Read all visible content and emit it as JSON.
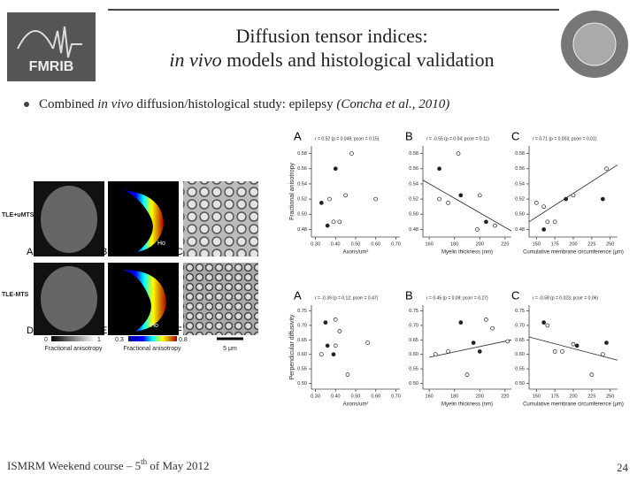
{
  "header": {
    "logo_text": "FMRIB",
    "title_line1": "Diffusion tensor indices:",
    "title_line2_italic": "in vivo",
    "title_line2_rest": " models and histological validation"
  },
  "bullet": {
    "text1": "Combined ",
    "text_italic": "in vivo",
    "text2": " diffusion/histological study: epilepsy ",
    "citation": "(Concha et al., 2010)"
  },
  "figure": {
    "row_labels": [
      "TLE+uMTS",
      "TLE-MTS"
    ],
    "panel_letters": [
      "A",
      "B",
      "C",
      "D",
      "E",
      "F"
    ],
    "image_labels": [
      "Ho",
      "Ho"
    ],
    "colorbar1": {
      "min": "0",
      "max": "1",
      "label": "Fractional anisotropy"
    },
    "colorbar2": {
      "min": "0.3",
      "max": "0.8",
      "label": "Fractional anisotropy"
    },
    "scale_label": "5 μm"
  },
  "plots": [
    {
      "ylabel": "Fractional anisotropy",
      "ylim": [
        0.47,
        0.59
      ],
      "yticks": [
        0.48,
        {
          "value": 0.5,
          "label": "0.50"
        },
        0.52,
        0.54,
        0.56,
        0.58
      ],
      "panels": [
        {
          "letter": "A",
          "stats": "r = 0.52 (p = 0.049; pcorr = 0.15)",
          "xlabel": "Axons/um²",
          "xlim": [
            0.28,
            0.72
          ],
          "xticks": [
            {
              "value": 0.3,
              "label": "0.30"
            },
            {
              "value": 0.4,
              "label": "0.40"
            },
            {
              "value": 0.5,
              "label": "0.50"
            },
            {
              "value": 0.6,
              "label": "0.60"
            },
            {
              "value": 0.7,
              "label": "0.70"
            }
          ],
          "points": [
            [
              0.4,
              0.56
            ],
            [
              0.48,
              0.58
            ],
            [
              0.37,
              0.52
            ],
            [
              0.33,
              0.515
            ],
            [
              0.45,
              0.525
            ],
            [
              0.39,
              0.49
            ],
            [
              0.36,
              0.485
            ],
            [
              0.42,
              0.49
            ],
            [
              0.6,
              0.52
            ]
          ]
        },
        {
          "letter": "B",
          "stats": "r = -0.55 (p = 0.04; pcorr = 0.11)",
          "xlabel": "Myelin thickness (nm)",
          "xlim": [
            155,
            225
          ],
          "xticks": [
            160,
            180,
            200,
            220
          ],
          "points": [
            [
              168,
              0.56
            ],
            [
              183,
              0.58
            ],
            [
              168,
              0.52
            ],
            [
              185,
              0.525
            ],
            [
              175,
              0.515
            ],
            [
              200,
              0.525
            ],
            [
              205,
              0.49
            ],
            [
              212,
              0.485
            ],
            [
              198,
              0.48
            ]
          ],
          "fit": {
            "x": [
              155,
              225
            ],
            "y": [
              0.545,
              0.478
            ]
          }
        },
        {
          "letter": "C",
          "stats": "r = 0.71 (p = 0.003; pcorr = 0.01)",
          "xlabel": "Cumulative membrane circumference (μm)",
          "xlim": [
            140,
            260
          ],
          "xticks": [
            150,
            175,
            200,
            225,
            250
          ],
          "points": [
            [
              160,
              0.48
            ],
            [
              165,
              0.49
            ],
            [
              175,
              0.49
            ],
            [
              190,
              0.52
            ],
            [
              200,
              0.525
            ],
            [
              245,
              0.56
            ],
            [
              240,
              0.52
            ],
            [
              150,
              0.515
            ],
            [
              160,
              0.51
            ]
          ],
          "fit": {
            "x": [
              140,
              260
            ],
            "y": [
              0.49,
              0.565
            ]
          }
        }
      ]
    },
    {
      "ylabel": "Perpendicular diffusivity",
      "ylim": [
        0.48,
        0.77
      ],
      "yticks": [
        {
          "value": 0.5,
          "label": "0.50"
        },
        0.55,
        {
          "value": 0.6,
          "label": "0.60"
        },
        0.65,
        {
          "value": 0.7,
          "label": "0.70"
        },
        0.75
      ],
      "panels": [
        {
          "letter": "A",
          "stats": "r = -0.39 (p = 0.12; pcorr = 0.47)",
          "xlabel": "Axons/um²",
          "xlim": [
            0.28,
            0.72
          ],
          "xticks": [
            {
              "value": 0.3,
              "label": "0.30"
            },
            {
              "value": 0.4,
              "label": "0.40"
            },
            {
              "value": 0.5,
              "label": "0.50"
            },
            {
              "value": 0.6,
              "label": "0.60"
            },
            {
              "value": 0.7,
              "label": "0.70"
            }
          ],
          "points": [
            [
              0.35,
              0.71
            ],
            [
              0.4,
              0.72
            ],
            [
              0.42,
              0.68
            ],
            [
              0.36,
              0.63
            ],
            [
              0.4,
              0.63
            ],
            [
              0.33,
              0.6
            ],
            [
              0.39,
              0.6
            ],
            [
              0.56,
              0.64
            ],
            [
              0.46,
              0.53
            ]
          ]
        },
        {
          "letter": "B",
          "stats": "r = 0.45 (p = 0.09; pcorr = 0.27)",
          "xlabel": "Myelin thickness (nm)",
          "xlim": [
            155,
            225
          ],
          "xticks": [
            160,
            180,
            200,
            220
          ],
          "points": [
            [
              185,
              0.71
            ],
            [
              205,
              0.72
            ],
            [
              210,
              0.69
            ],
            [
              195,
              0.64
            ],
            [
              165,
              0.6
            ],
            [
              175,
              0.61
            ],
            [
              200,
              0.61
            ],
            [
              222,
              0.645
            ],
            [
              190,
              0.53
            ]
          ],
          "fit": {
            "x": [
              160,
              225
            ],
            "y": [
              0.59,
              0.65
            ]
          }
        },
        {
          "letter": "C",
          "stats": "r = -0.58 (p = 0.023; pcorr = 0.06)",
          "xlabel": "Cumulative membrane circumference (μm)",
          "xlim": [
            140,
            260
          ],
          "xticks": [
            150,
            175,
            200,
            225,
            250
          ],
          "points": [
            [
              160,
              0.71
            ],
            [
              165,
              0.7
            ],
            [
              200,
              0.635
            ],
            [
              205,
              0.63
            ],
            [
              185,
              0.61
            ],
            [
              175,
              0.61
            ],
            [
              245,
              0.64
            ],
            [
              240,
              0.6
            ],
            [
              225,
              0.53
            ]
          ],
          "fit": {
            "x": [
              140,
              260
            ],
            "y": [
              0.66,
              0.58
            ]
          }
        }
      ]
    }
  ],
  "footer": {
    "text1": "ISMRM Weekend course – 5",
    "superscript": "th",
    "text2": " of May 2012",
    "page_number": "24"
  }
}
